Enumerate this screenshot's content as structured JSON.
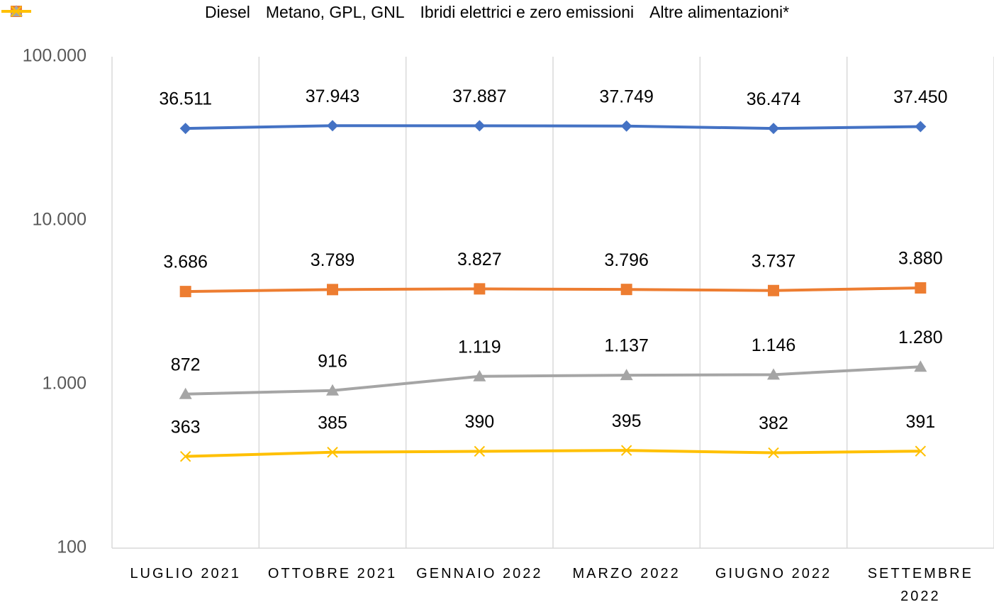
{
  "chart_data": {
    "type": "line",
    "categories": [
      "LUGLIO 2021",
      "OTTOBRE 2021",
      "GENNAIO 2022",
      "MARZO 2022",
      "GIUGNO 2022",
      "SETTEMBRE 2022"
    ],
    "series": [
      {
        "name": "Diesel",
        "color": "#4472c4",
        "marker": "diamond",
        "values": [
          36511,
          37943,
          37887,
          37749,
          36474,
          37450
        ],
        "value_labels": [
          "36.511",
          "37.943",
          "37.887",
          "37.749",
          "36.474",
          "37.450"
        ]
      },
      {
        "name": "Metano, GPL, GNL",
        "color": "#ed7d31",
        "marker": "square",
        "values": [
          3686,
          3789,
          3827,
          3796,
          3737,
          3880
        ],
        "value_labels": [
          "3.686",
          "3.789",
          "3.827",
          "3.796",
          "3.737",
          "3.880"
        ]
      },
      {
        "name": "Ibridi elettrici e zero emissioni",
        "color": "#a5a5a5",
        "marker": "triangle",
        "values": [
          872,
          916,
          1119,
          1137,
          1146,
          1280
        ],
        "value_labels": [
          "872",
          "916",
          "1.119",
          "1.137",
          "1.146",
          "1.280"
        ]
      },
      {
        "name": "Altre alimentazioni*",
        "color": "#ffc000",
        "marker": "x",
        "values": [
          363,
          385,
          390,
          395,
          382,
          391
        ],
        "value_labels": [
          "363",
          "385",
          "390",
          "395",
          "382",
          "391"
        ]
      }
    ],
    "ylim": [
      100,
      100000
    ],
    "log_scale": true,
    "yticks": [
      100,
      {
        "value": 1000,
        "label": "1.000"
      },
      {
        "value": 10000,
        "label": "10.000"
      },
      {
        "value": 100000,
        "label": "100.000"
      }
    ],
    "grid": "x",
    "legend": "top"
  }
}
